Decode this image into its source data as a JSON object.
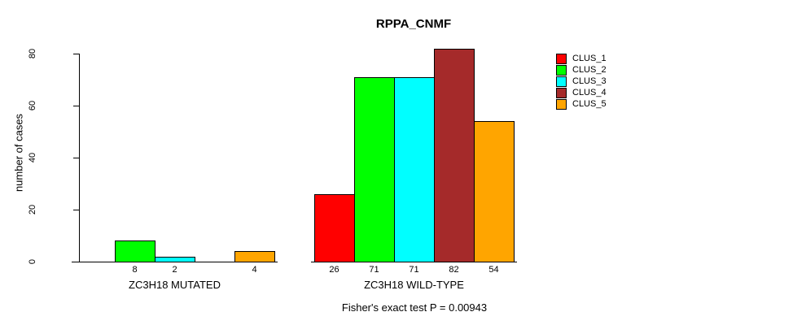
{
  "chart_data": {
    "type": "bar",
    "title": "RPPA_CNMF",
    "ylabel": "number of cases",
    "xlabel": "",
    "ylim": [
      0,
      80
    ],
    "yticks": [
      0,
      20,
      40,
      60,
      80
    ],
    "grid": false,
    "legend_position": "top-right",
    "series": [
      {
        "name": "CLUS_1",
        "color": "#FF0000"
      },
      {
        "name": "CLUS_2",
        "color": "#00FF00"
      },
      {
        "name": "CLUS_3",
        "color": "#00FFFF"
      },
      {
        "name": "CLUS_4",
        "color": "#A52A2A"
      },
      {
        "name": "CLUS_5",
        "color": "#FFA500"
      }
    ],
    "groups": [
      {
        "label": "ZC3H18 MUTATED",
        "values": [
          0,
          8,
          2,
          0,
          4
        ]
      },
      {
        "label": "ZC3H18 WILD-TYPE",
        "values": [
          26,
          71,
          71,
          82,
          54
        ]
      }
    ],
    "bar_value_labels": [
      [
        "",
        "8",
        "2",
        "",
        "4"
      ],
      [
        "26",
        "71",
        "71",
        "82",
        "54"
      ]
    ],
    "footer": "Fisher's exact test P = 0.00943"
  }
}
